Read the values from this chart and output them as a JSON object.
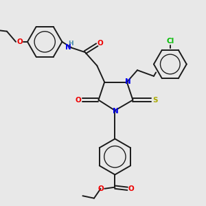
{
  "bg_color": "#e8e8e8",
  "bond_color": "#1a1a1a",
  "bond_width": 1.4,
  "atom_colors": {
    "N": "#0000ee",
    "O": "#ee0000",
    "S": "#aaaa00",
    "Cl": "#00bb00",
    "H": "#4488aa",
    "C": "#1a1a1a"
  },
  "font_size": 7.0
}
